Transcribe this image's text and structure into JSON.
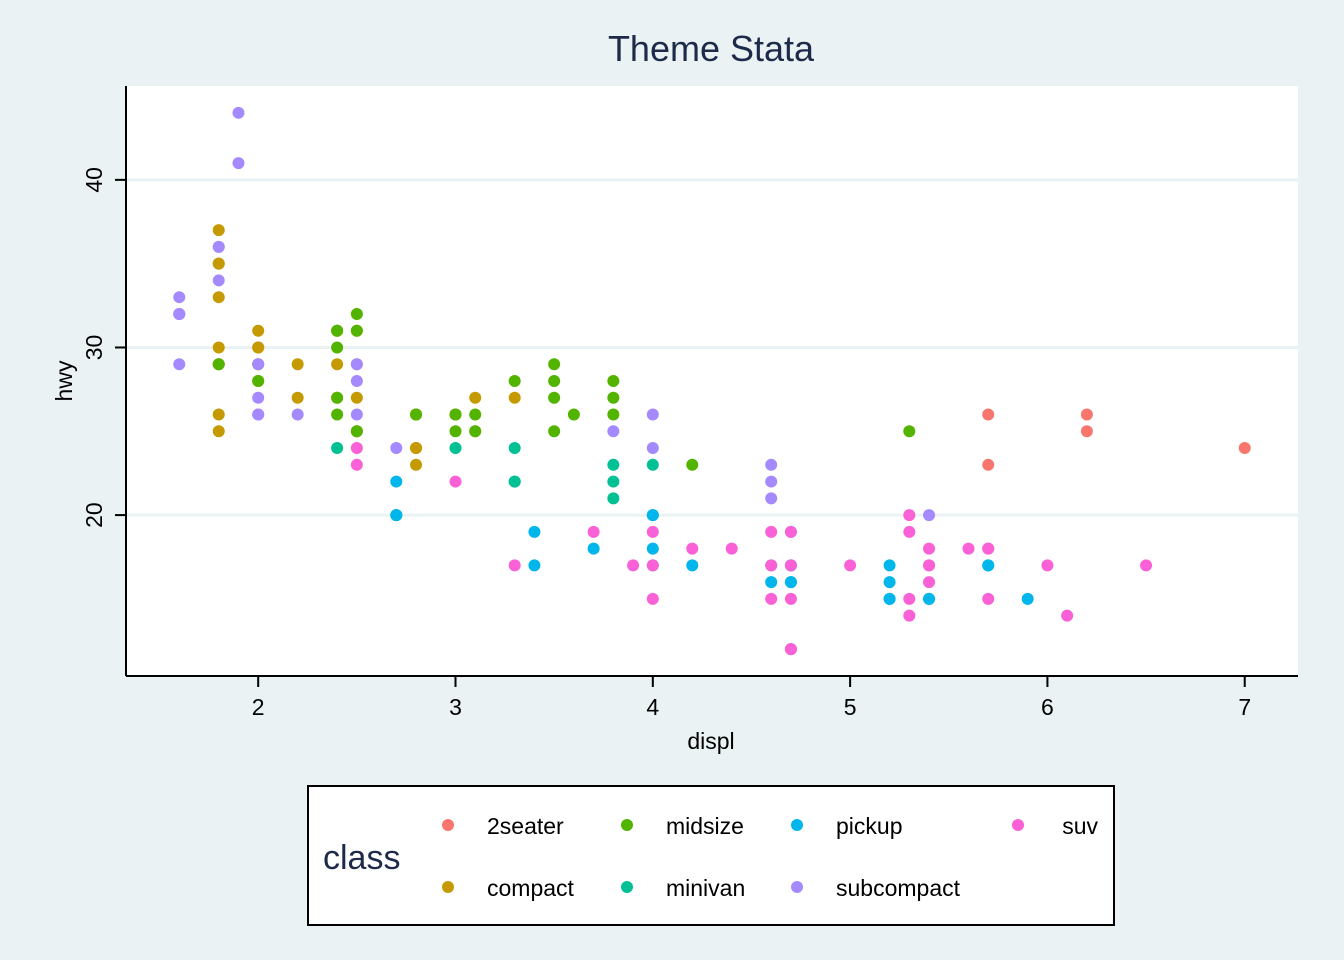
{
  "chart_data": {
    "type": "scatter",
    "title": "Theme Stata",
    "xlabel": "displ",
    "ylabel": "hwy",
    "xlim": [
      1.33,
      7.27
    ],
    "ylim": [
      10.4,
      45.6
    ],
    "xticks": [
      "2",
      "3",
      "4",
      "5",
      "6",
      "7"
    ],
    "yticks": [
      "20",
      "30",
      "40"
    ],
    "grid": "horizontal",
    "legend_position": "bottom",
    "legend_title": "class",
    "series": [
      {
        "name": "2seater",
        "color": "#f8766d",
        "points": [
          [
            5.7,
            26
          ],
          [
            5.7,
            23
          ],
          [
            6.2,
            26
          ],
          [
            6.2,
            25
          ],
          [
            7.0,
            24
          ]
        ]
      },
      {
        "name": "compact",
        "color": "#c49a00",
        "points": [
          [
            1.8,
            29
          ],
          [
            1.8,
            29
          ],
          [
            2.0,
            31
          ],
          [
            2.0,
            30
          ],
          [
            2.8,
            26
          ],
          [
            2.8,
            26
          ],
          [
            3.1,
            27
          ],
          [
            1.8,
            26
          ],
          [
            1.8,
            25
          ],
          [
            2.0,
            28
          ],
          [
            2.0,
            29
          ],
          [
            2.8,
            24
          ],
          [
            3.1,
            25
          ],
          [
            2.2,
            29
          ],
          [
            2.2,
            27
          ],
          [
            2.4,
            31
          ],
          [
            2.4,
            31
          ],
          [
            3.0,
            26
          ],
          [
            3.0,
            26
          ],
          [
            3.3,
            27
          ],
          [
            1.8,
            37
          ],
          [
            1.8,
            35
          ],
          [
            1.8,
            30
          ],
          [
            1.8,
            33
          ],
          [
            1.8,
            35
          ],
          [
            2.4,
            29
          ],
          [
            2.4,
            27
          ],
          [
            2.5,
            31
          ],
          [
            2.5,
            27
          ],
          [
            2.5,
            25
          ],
          [
            2.5,
            25
          ],
          [
            2.8,
            24
          ],
          [
            2.8,
            23
          ],
          [
            2.5,
            29
          ],
          [
            2.0,
            30
          ]
        ]
      },
      {
        "name": "midsize",
        "color": "#53b400",
        "points": [
          [
            2.4,
            27
          ],
          [
            2.4,
            30
          ],
          [
            2.4,
            26
          ],
          [
            2.5,
            32
          ],
          [
            2.5,
            31
          ],
          [
            2.5,
            25
          ],
          [
            3.3,
            28
          ],
          [
            3.5,
            28
          ],
          [
            3.5,
            29
          ],
          [
            3.5,
            27
          ],
          [
            3.8,
            28
          ],
          [
            3.8,
            27
          ],
          [
            3.8,
            26
          ],
          [
            3.1,
            26
          ],
          [
            3.1,
            25
          ],
          [
            3.6,
            26
          ],
          [
            3.5,
            25
          ],
          [
            3.0,
            26
          ],
          [
            2.8,
            26
          ],
          [
            4.2,
            23
          ],
          [
            5.3,
            25
          ],
          [
            2.0,
            29
          ],
          [
            2.0,
            28
          ],
          [
            3.0,
            25
          ],
          [
            2.4,
            31
          ],
          [
            1.8,
            29
          ]
        ]
      },
      {
        "name": "minivan",
        "color": "#00c094",
        "points": [
          [
            2.4,
            24
          ],
          [
            3.0,
            24
          ],
          [
            3.3,
            22
          ],
          [
            3.3,
            24
          ],
          [
            3.8,
            22
          ],
          [
            3.8,
            21
          ],
          [
            4.0,
            23
          ],
          [
            3.3,
            22
          ],
          [
            3.8,
            23
          ]
        ]
      },
      {
        "name": "pickup",
        "color": "#00b6eb",
        "points": [
          [
            2.7,
            20
          ],
          [
            2.7,
            22
          ],
          [
            2.7,
            20
          ],
          [
            3.4,
            19
          ],
          [
            3.4,
            17
          ],
          [
            4.0,
            20
          ],
          [
            4.0,
            17
          ],
          [
            4.7,
            16
          ],
          [
            4.7,
            17
          ],
          [
            4.7,
            16
          ],
          [
            5.2,
            15
          ],
          [
            5.2,
            17
          ],
          [
            3.7,
            18
          ],
          [
            4.7,
            12
          ],
          [
            4.0,
            18
          ],
          [
            4.6,
            16
          ],
          [
            4.6,
            17
          ],
          [
            5.4,
            15
          ],
          [
            5.4,
            15
          ],
          [
            4.2,
            17
          ],
          [
            5.2,
            16
          ],
          [
            5.7,
            17
          ],
          [
            5.9,
            15
          ],
          [
            2.7,
            20
          ],
          [
            4.0,
            20
          ],
          [
            4.7,
            17
          ],
          [
            4.7,
            19
          ],
          [
            5.7,
            17
          ],
          [
            5.2,
            15
          ]
        ]
      },
      {
        "name": "subcompact",
        "color": "#a58aff",
        "points": [
          [
            1.6,
            33
          ],
          [
            1.6,
            32
          ],
          [
            1.6,
            32
          ],
          [
            1.6,
            29
          ],
          [
            1.6,
            32
          ],
          [
            1.8,
            34
          ],
          [
            1.8,
            36
          ],
          [
            1.8,
            36
          ],
          [
            2.0,
            29
          ],
          [
            2.0,
            26
          ],
          [
            2.0,
            27
          ],
          [
            2.2,
            26
          ],
          [
            2.5,
            26
          ],
          [
            2.5,
            28
          ],
          [
            2.5,
            29
          ],
          [
            2.7,
            24
          ],
          [
            3.8,
            25
          ],
          [
            4.0,
            26
          ],
          [
            4.0,
            24
          ],
          [
            4.6,
            21
          ],
          [
            4.6,
            22
          ],
          [
            4.6,
            23
          ],
          [
            5.4,
            20
          ],
          [
            1.9,
            44
          ],
          [
            1.9,
            41
          ],
          [
            2.0,
            26
          ]
        ]
      },
      {
        "name": "suv",
        "color": "#fb61d7",
        "points": [
          [
            2.5,
            24
          ],
          [
            2.5,
            23
          ],
          [
            3.0,
            22
          ],
          [
            3.3,
            17
          ],
          [
            3.7,
            19
          ],
          [
            3.9,
            17
          ],
          [
            4.0,
            19
          ],
          [
            4.0,
            17
          ],
          [
            4.0,
            15
          ],
          [
            4.2,
            18
          ],
          [
            4.4,
            18
          ],
          [
            4.6,
            19
          ],
          [
            4.6,
            17
          ],
          [
            4.6,
            15
          ],
          [
            4.7,
            19
          ],
          [
            4.7,
            17
          ],
          [
            4.7,
            15
          ],
          [
            4.7,
            12
          ],
          [
            5.0,
            17
          ],
          [
            5.3,
            20
          ],
          [
            5.3,
            19
          ],
          [
            5.3,
            15
          ],
          [
            5.3,
            14
          ],
          [
            5.4,
            18
          ],
          [
            5.4,
            17
          ],
          [
            5.4,
            16
          ],
          [
            5.6,
            18
          ],
          [
            5.7,
            18
          ],
          [
            5.7,
            15
          ],
          [
            6.0,
            17
          ],
          [
            6.1,
            14
          ],
          [
            6.5,
            17
          ],
          [
            4.7,
            12
          ],
          [
            5.7,
            18
          ],
          [
            5.4,
            17
          ]
        ]
      }
    ]
  }
}
